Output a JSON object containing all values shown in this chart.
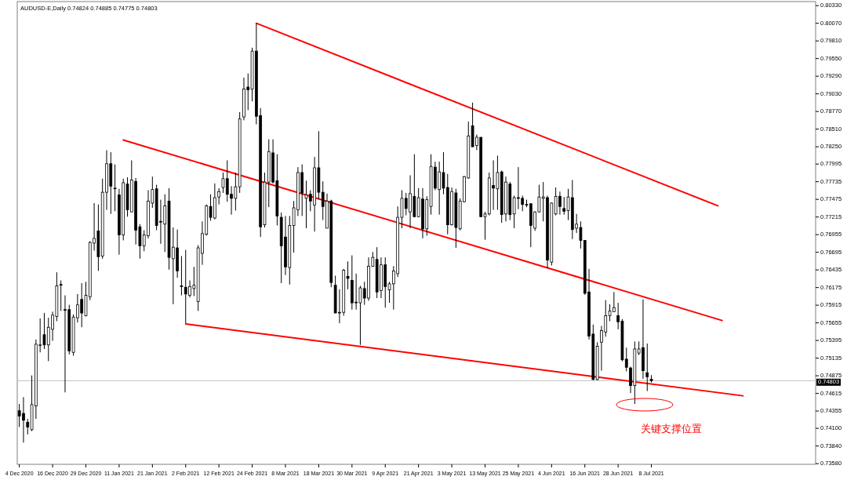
{
  "chart_data": {
    "type": "candlestick",
    "title": "AUDUSD-E,Daily  0.74824 0.74885 0.74775 0.74803",
    "color": "#000000",
    "categories": [
      "4 Dec 2020",
      null,
      null,
      null,
      null,
      null,
      null,
      null,
      "16 Dec 2020",
      null,
      null,
      null,
      null,
      null,
      null,
      null,
      "29 Dec 2020",
      null,
      null,
      null,
      null,
      null,
      null,
      null,
      "11 Jan 2021",
      null,
      null,
      null,
      null,
      null,
      null,
      null,
      "21 Jan 2021",
      null,
      null,
      null,
      null,
      null,
      null,
      null,
      "2 Feb 2021",
      null,
      null,
      null,
      null,
      null,
      null,
      null,
      "12 Feb 2021",
      null,
      null,
      null,
      null,
      null,
      null,
      null,
      "24 Feb 2021",
      null,
      null,
      null,
      null,
      null,
      null,
      null,
      "8 Mar 2021",
      null,
      null,
      null,
      null,
      null,
      null,
      null,
      "18 Mar 2021",
      null,
      null,
      null,
      null,
      null,
      null,
      null,
      "30 Mar 2021",
      null,
      null,
      null,
      null,
      null,
      null,
      null,
      "9 Apr 2021",
      null,
      null,
      null,
      null,
      null,
      null,
      null,
      "21 Apr 2021",
      null,
      null,
      null,
      null,
      null,
      null,
      null,
      "3 May 2021",
      null,
      null,
      null,
      null,
      null,
      null,
      null,
      "13 May 2021",
      null,
      null,
      null,
      null,
      null,
      null,
      null,
      "25 May 2021",
      null,
      null,
      null,
      null,
      null,
      null,
      null,
      "4 Jun 2021",
      null,
      null,
      null,
      null,
      null,
      null,
      null,
      "16 Jun 2021",
      null,
      null,
      null,
      null,
      null,
      null,
      null,
      "28 Jun 2021",
      null,
      null,
      null,
      null,
      null,
      null,
      null,
      "8 Jul 2021",
      null,
      null,
      null,
      null,
      null,
      null,
      null,
      null,
      null,
      null,
      null,
      null,
      null,
      null,
      null,
      null,
      null,
      null,
      null,
      null,
      null,
      null,
      null,
      null,
      null,
      null,
      null,
      null,
      null,
      null,
      null,
      null,
      null,
      null,
      null,
      null,
      null,
      null,
      null
    ],
    "ohlc": [
      [
        0.7436,
        0.7446,
        0.7412,
        0.7428
      ],
      [
        0.7432,
        0.7456,
        0.7389,
        0.7422
      ],
      [
        0.7419,
        0.7424,
        0.7401,
        0.7412
      ],
      [
        0.7408,
        0.7488,
        0.7406,
        0.7445
      ],
      [
        0.7443,
        0.7541,
        0.7424,
        0.7534
      ],
      [
        0.7533,
        0.7572,
        0.7522,
        0.7533
      ],
      [
        0.7548,
        0.758,
        0.7527,
        0.7533
      ],
      [
        0.7533,
        0.7573,
        0.7509,
        0.7559
      ],
      [
        0.7556,
        0.7582,
        0.7539,
        0.7577
      ],
      [
        0.7575,
        0.764,
        0.7568,
        0.762
      ],
      [
        0.7622,
        0.7628,
        0.7583,
        0.7621
      ],
      [
        0.7585,
        0.7606,
        0.7463,
        0.7584
      ],
      [
        0.7585,
        0.7592,
        0.7519,
        0.7524
      ],
      [
        0.7522,
        0.7578,
        0.7517,
        0.7574
      ],
      [
        0.7573,
        0.7608,
        0.7566,
        0.7592
      ],
      [
        0.76,
        0.7624,
        0.7559,
        0.758
      ],
      [
        0.7576,
        0.7626,
        0.7575,
        0.7606
      ],
      [
        0.7604,
        0.7686,
        0.7599,
        0.7684
      ],
      [
        0.7683,
        0.7742,
        0.7672,
        0.769
      ],
      [
        0.7701,
        0.774,
        0.7642,
        0.7663
      ],
      [
        0.7664,
        0.7778,
        0.766,
        0.7758
      ],
      [
        0.7758,
        0.782,
        0.7732,
        0.78
      ],
      [
        0.78,
        0.7817,
        0.7726,
        0.7767
      ],
      [
        0.7764,
        0.7799,
        0.773,
        0.7764
      ],
      [
        0.7754,
        0.7763,
        0.7666,
        0.7695
      ],
      [
        0.7695,
        0.7778,
        0.7687,
        0.7772
      ],
      [
        0.777,
        0.778,
        0.7722,
        0.7732
      ],
      [
        0.7729,
        0.7805,
        0.7729,
        0.7776
      ],
      [
        0.7774,
        0.7779,
        0.7681,
        0.7702
      ],
      [
        0.7707,
        0.7711,
        0.766,
        0.7679
      ],
      [
        0.7679,
        0.7702,
        0.7671,
        0.7695
      ],
      [
        0.7694,
        0.7761,
        0.769,
        0.7745
      ],
      [
        0.7742,
        0.7781,
        0.7735,
        0.7762
      ],
      [
        0.7763,
        0.7769,
        0.7702,
        0.7709
      ],
      [
        0.7715,
        0.7747,
        0.7682,
        0.7714
      ],
      [
        0.7711,
        0.7755,
        0.767,
        0.7738
      ],
      [
        0.7745,
        0.7764,
        0.7644,
        0.7662
      ],
      [
        0.766,
        0.7706,
        0.7593,
        0.7677
      ],
      [
        0.7676,
        0.7703,
        0.7632,
        0.7642
      ],
      [
        0.762,
        0.7664,
        0.7606,
        0.7619
      ],
      [
        0.7618,
        0.7673,
        0.7565,
        0.7608
      ],
      [
        0.7606,
        0.7628,
        0.7603,
        0.7619
      ],
      [
        0.7616,
        0.7648,
        0.7605,
        0.7621
      ],
      [
        0.7597,
        0.768,
        0.7583,
        0.7676
      ],
      [
        0.7668,
        0.7715,
        0.7651,
        0.7697
      ],
      [
        0.7696,
        0.774,
        0.7694,
        0.7738
      ],
      [
        0.7737,
        0.7755,
        0.7716,
        0.7721
      ],
      [
        0.772,
        0.7771,
        0.7718,
        0.775
      ],
      [
        0.7751,
        0.7764,
        0.774,
        0.7759
      ],
      [
        0.7765,
        0.7787,
        0.7757,
        0.7778
      ],
      [
        0.7778,
        0.7805,
        0.7744,
        0.7755
      ],
      [
        0.7755,
        0.7767,
        0.7725,
        0.7749
      ],
      [
        0.7749,
        0.7787,
        0.7731,
        0.7766
      ],
      [
        0.7766,
        0.7876,
        0.7757,
        0.7866
      ],
      [
        0.7869,
        0.7927,
        0.7864,
        0.791
      ],
      [
        0.7913,
        0.7933,
        0.7879,
        0.7909
      ],
      [
        0.791,
        0.7971,
        0.7892,
        0.7966
      ],
      [
        0.7966,
        0.8007,
        0.7858,
        0.787
      ],
      [
        0.7871,
        0.7882,
        0.7692,
        0.7707
      ],
      [
        0.771,
        0.7787,
        0.7706,
        0.7773
      ],
      [
        0.7773,
        0.7836,
        0.7736,
        0.7818
      ],
      [
        0.7816,
        0.7836,
        0.7771,
        0.7773
      ],
      [
        0.7775,
        0.7814,
        0.7709,
        0.7723
      ],
      [
        0.7721,
        0.7728,
        0.7624,
        0.7679
      ],
      [
        0.7692,
        0.7723,
        0.7636,
        0.7648
      ],
      [
        0.7647,
        0.7723,
        0.7622,
        0.7709
      ],
      [
        0.7709,
        0.7745,
        0.7669,
        0.7735
      ],
      [
        0.7732,
        0.7795,
        0.7723,
        0.7787
      ],
      [
        0.7787,
        0.7799,
        0.7723,
        0.7757
      ],
      [
        0.7749,
        0.7775,
        0.7705,
        0.7754
      ],
      [
        0.7755,
        0.7761,
        0.773,
        0.7745
      ],
      [
        0.7739,
        0.781,
        0.77,
        0.7794
      ],
      [
        0.7794,
        0.7848,
        0.7748,
        0.7758
      ],
      [
        0.7758,
        0.7774,
        0.7717,
        0.7737
      ],
      [
        0.7705,
        0.7756,
        0.7705,
        0.7745
      ],
      [
        0.7745,
        0.7747,
        0.7618,
        0.7625
      ],
      [
        0.7621,
        0.7635,
        0.758,
        0.758
      ],
      [
        0.758,
        0.7615,
        0.7565,
        0.7581
      ],
      [
        0.7581,
        0.7645,
        0.7576,
        0.7643
      ],
      [
        0.7634,
        0.7656,
        0.7615,
        0.7631
      ],
      [
        0.7628,
        0.7665,
        0.7585,
        0.7595
      ],
      [
        0.7596,
        0.7638,
        0.7585,
        0.7595
      ],
      [
        0.7595,
        0.762,
        0.7533,
        0.7617
      ],
      [
        0.7616,
        0.7626,
        0.7592,
        0.7602
      ],
      [
        0.7602,
        0.7662,
        0.7598,
        0.7649
      ],
      [
        0.7649,
        0.767,
        0.7648,
        0.7662
      ],
      [
        0.7659,
        0.7677,
        0.7602,
        0.7611
      ],
      [
        0.7613,
        0.7662,
        0.7602,
        0.7651
      ],
      [
        0.7651,
        0.7662,
        0.7588,
        0.7619
      ],
      [
        0.7614,
        0.7626,
        0.7595,
        0.7623
      ],
      [
        0.7623,
        0.7649,
        0.7585,
        0.7642
      ],
      [
        0.7638,
        0.7737,
        0.7633,
        0.7721
      ],
      [
        0.7721,
        0.7761,
        0.7705,
        0.7749
      ],
      [
        0.7749,
        0.7757,
        0.7724,
        0.7734
      ],
      [
        0.7729,
        0.7783,
        0.7705,
        0.7756
      ],
      [
        0.7752,
        0.7814,
        0.7721,
        0.7722
      ],
      [
        0.7722,
        0.7764,
        0.7721,
        0.775
      ],
      [
        0.7748,
        0.7764,
        0.769,
        0.7704
      ],
      [
        0.7704,
        0.7752,
        0.7694,
        0.7747
      ],
      [
        0.7737,
        0.7814,
        0.7725,
        0.7796
      ],
      [
        0.7795,
        0.7803,
        0.7761,
        0.7764
      ],
      [
        0.7762,
        0.7803,
        0.7725,
        0.7788
      ],
      [
        0.7787,
        0.7817,
        0.7755,
        0.7764
      ],
      [
        0.7765,
        0.7785,
        0.7696,
        0.771
      ],
      [
        0.771,
        0.7765,
        0.7709,
        0.7759
      ],
      [
        0.7757,
        0.7763,
        0.7676,
        0.7706
      ],
      [
        0.7704,
        0.7749,
        0.7702,
        0.7745
      ],
      [
        0.7744,
        0.7782,
        0.7743,
        0.7781
      ],
      [
        0.7779,
        0.7862,
        0.7778,
        0.7841
      ],
      [
        0.7856,
        0.789,
        0.7825,
        0.7825
      ],
      [
        0.7827,
        0.7843,
        0.782,
        0.7839
      ],
      [
        0.7839,
        0.7839,
        0.7721,
        0.7722
      ],
      [
        0.7722,
        0.7729,
        0.7688,
        0.7726
      ],
      [
        0.7726,
        0.7787,
        0.7724,
        0.7779
      ],
      [
        0.7768,
        0.7805,
        0.7732,
        0.7764
      ],
      [
        0.7763,
        0.7812,
        0.7732,
        0.7787
      ],
      [
        0.7788,
        0.779,
        0.7713,
        0.7725
      ],
      [
        0.7726,
        0.7781,
        0.7715,
        0.7773
      ],
      [
        0.777,
        0.7773,
        0.7717,
        0.7725
      ],
      [
        0.7726,
        0.7753,
        0.7705,
        0.775
      ],
      [
        0.775,
        0.7795,
        0.7733,
        0.7749
      ],
      [
        0.7749,
        0.7753,
        0.773,
        0.774
      ],
      [
        0.774,
        0.7747,
        0.7736,
        0.7739
      ],
      [
        0.7741,
        0.7742,
        0.7677,
        0.7709
      ],
      [
        0.7705,
        0.773,
        0.7701,
        0.7729
      ],
      [
        0.7729,
        0.7769,
        0.7728,
        0.7751
      ],
      [
        0.7749,
        0.7773,
        0.7715,
        0.7751
      ],
      [
        0.775,
        0.7753,
        0.7646,
        0.7658
      ],
      [
        0.7655,
        0.7743,
        0.765,
        0.7742
      ],
      [
        0.7726,
        0.7765,
        0.7724,
        0.7752
      ],
      [
        0.7752,
        0.7759,
        0.7725,
        0.7737
      ],
      [
        0.7734,
        0.7751,
        0.7725,
        0.773
      ],
      [
        0.7731,
        0.7763,
        0.7717,
        0.7751
      ],
      [
        0.775,
        0.7776,
        0.7689,
        0.7703
      ],
      [
        0.7705,
        0.7726,
        0.7698,
        0.7711
      ],
      [
        0.7706,
        0.7715,
        0.7675,
        0.7687
      ],
      [
        0.7687,
        0.7687,
        0.7607,
        0.7609
      ],
      [
        0.7611,
        0.7645,
        0.7541,
        0.7546
      ],
      [
        0.7549,
        0.7563,
        0.7481,
        0.7482
      ],
      [
        0.7482,
        0.7537,
        0.7481,
        0.7531
      ],
      [
        0.7537,
        0.7561,
        0.7495,
        0.7554
      ],
      [
        0.7552,
        0.7599,
        0.7545,
        0.7576
      ],
      [
        0.7576,
        0.7593,
        0.7568,
        0.7583
      ],
      [
        0.7582,
        0.7611,
        0.7582,
        0.7588
      ],
      [
        0.7576,
        0.7595,
        0.7556,
        0.7567
      ],
      [
        0.7568,
        0.7571,
        0.7509,
        0.7511
      ],
      [
        0.7512,
        0.7529,
        0.7494,
        0.75
      ],
      [
        0.7499,
        0.7501,
        0.7462,
        0.7473
      ],
      [
        0.7473,
        0.7538,
        0.7446,
        0.7527
      ],
      [
        0.7521,
        0.7538,
        0.7518,
        0.7527
      ],
      [
        0.7529,
        0.76,
        0.7483,
        0.7495
      ],
      [
        0.7492,
        0.7535,
        0.7465,
        0.7486
      ],
      [
        0.74824,
        0.74885,
        0.74775,
        0.74803
      ],
      null,
      null,
      null,
      null,
      null,
      null,
      null,
      null,
      null,
      null,
      null,
      null,
      null,
      null,
      null,
      null,
      null,
      null,
      null,
      null,
      null,
      null,
      null,
      null,
      null,
      null,
      null,
      null,
      null,
      null,
      null,
      null,
      null,
      null,
      null,
      null,
      null,
      null,
      null
    ],
    "series": [
      {
        "type": "line",
        "color": "#ff0000",
        "values": [
          null,
          null,
          null,
          null,
          null,
          null,
          null,
          null,
          null,
          null,
          null,
          null,
          null,
          null,
          null,
          null,
          null,
          null,
          null,
          null,
          null,
          null,
          null,
          null,
          null,
          null,
          null,
          null,
          null,
          null,
          null,
          null,
          null,
          null,
          null,
          null,
          null,
          null,
          null,
          null,
          null,
          null,
          null,
          null,
          null,
          null,
          null,
          null,
          null,
          null,
          null,
          null,
          null,
          null,
          null,
          null,
          null,
          0.8007,
          null,
          null,
          null,
          null,
          null,
          null,
          null,
          null,
          null,
          null,
          null,
          null,
          null,
          null,
          null,
          null,
          null,
          null,
          null,
          null,
          null,
          null,
          null,
          null,
          null,
          null,
          null,
          null,
          null,
          null,
          null,
          null,
          null,
          null,
          null,
          null,
          null,
          null,
          null,
          null,
          null,
          null,
          null,
          null,
          null,
          null,
          null,
          null,
          null,
          null,
          null,
          null,
          null,
          null,
          null,
          null,
          null,
          null,
          null,
          null,
          null,
          null,
          null,
          null,
          null,
          null,
          null,
          null,
          null,
          null,
          null,
          null,
          null,
          null,
          null,
          null,
          null,
          null,
          null,
          null,
          null,
          null,
          null,
          null,
          null,
          null,
          null,
          null,
          null,
          null,
          null,
          null,
          null,
          null,
          null,
          null,
          null,
          null,
          null,
          null,
          null,
          null,
          null,
          null,
          null,
          null,
          null,
          null,
          null,
          null,
          0.7738,
          null,
          null,
          null,
          null,
          null,
          null,
          null,
          null,
          null,
          null,
          null,
          null,
          null,
          null,
          null,
          null,
          null,
          null,
          null,
          null,
          null,
          null,
          null
        ]
      },
      {
        "type": "line",
        "color": "#ff0000",
        "values": [
          null,
          null,
          null,
          null,
          null,
          null,
          null,
          null,
          null,
          null,
          null,
          null,
          null,
          null,
          null,
          null,
          null,
          null,
          null,
          null,
          null,
          null,
          null,
          null,
          null,
          0.7835,
          null,
          null,
          null,
          null,
          null,
          null,
          null,
          null,
          null,
          null,
          null,
          null,
          null,
          null,
          null,
          null,
          null,
          null,
          null,
          null,
          null,
          null,
          null,
          null,
          null,
          null,
          null,
          null,
          null,
          null,
          null,
          null,
          null,
          null,
          null,
          null,
          null,
          null,
          null,
          null,
          null,
          null,
          null,
          null,
          null,
          null,
          null,
          null,
          null,
          null,
          null,
          null,
          null,
          null,
          null,
          null,
          null,
          null,
          null,
          null,
          null,
          null,
          null,
          null,
          null,
          null,
          null,
          null,
          null,
          null,
          null,
          null,
          null,
          null,
          null,
          null,
          null,
          null,
          null,
          null,
          null,
          null,
          null,
          null,
          null,
          null,
          null,
          null,
          null,
          null,
          null,
          null,
          null,
          null,
          null,
          null,
          null,
          null,
          null,
          null,
          null,
          null,
          null,
          null,
          null,
          null,
          null,
          null,
          null,
          null,
          null,
          null,
          null,
          null,
          null,
          null,
          null,
          null,
          null,
          null,
          null,
          null,
          null,
          null,
          null,
          null,
          null,
          null,
          null,
          null,
          null,
          null,
          null,
          null,
          null,
          null,
          null,
          null,
          null,
          null,
          null,
          null,
          null,
          0.7569,
          null,
          null,
          null,
          null,
          null,
          null,
          null,
          null,
          null,
          null,
          null,
          null,
          null,
          null,
          null,
          null,
          null,
          null,
          null,
          null,
          null,
          null
        ]
      },
      {
        "type": "line",
        "color": "#ff0000",
        "values": [
          null,
          null,
          null,
          null,
          null,
          null,
          null,
          null,
          null,
          null,
          null,
          null,
          null,
          null,
          null,
          null,
          null,
          null,
          null,
          null,
          null,
          null,
          null,
          null,
          null,
          null,
          null,
          null,
          null,
          null,
          null,
          null,
          null,
          null,
          null,
          null,
          null,
          null,
          null,
          null,
          0.7564,
          null,
          null,
          null,
          null,
          null,
          null,
          null,
          null,
          null,
          null,
          null,
          null,
          null,
          null,
          null,
          null,
          null,
          null,
          null,
          null,
          null,
          null,
          null,
          null,
          null,
          null,
          null,
          null,
          null,
          null,
          null,
          null,
          null,
          null,
          null,
          null,
          null,
          null,
          null,
          null,
          null,
          null,
          null,
          null,
          null,
          null,
          null,
          null,
          null,
          null,
          null,
          null,
          null,
          null,
          null,
          null,
          null,
          null,
          null,
          null,
          null,
          null,
          null,
          null,
          null,
          null,
          null,
          null,
          null,
          null,
          null,
          null,
          null,
          null,
          null,
          null,
          null,
          null,
          null,
          null,
          null,
          null,
          null,
          null,
          null,
          null,
          null,
          null,
          null,
          null,
          null,
          null,
          null,
          null,
          null,
          null,
          null,
          null,
          null,
          null,
          null,
          null,
          null,
          null,
          null,
          null,
          null,
          null,
          null,
          null,
          null,
          null,
          null,
          null,
          null,
          null,
          null,
          null,
          null,
          null,
          null,
          null,
          null,
          null,
          null,
          null,
          null,
          null,
          null,
          null,
          null,
          null,
          null,
          0.7458,
          null,
          null,
          null,
          null,
          null,
          null,
          null,
          null,
          null,
          null,
          null,
          null,
          null,
          null,
          null,
          null,
          null
        ]
      }
    ],
    "ylim": [
      0.7357,
      0.8039
    ],
    "yticks": [
      {
        "value": 0.8033,
        "label": "0.80330"
      },
      {
        "value": 0.8007,
        "label": "0.80070"
      },
      {
        "value": 0.7981,
        "label": "0.79810"
      },
      {
        "value": 0.7955,
        "label": "0.79550"
      },
      {
        "value": 0.7929,
        "label": "0.79290"
      },
      {
        "value": 0.7903,
        "label": "0.79030"
      },
      {
        "value": 0.7877,
        "label": "0.78770"
      },
      {
        "value": 0.7851,
        "label": "0.78510"
      },
      {
        "value": 0.7825,
        "label": "0.78250"
      },
      {
        "value": 0.77995,
        "label": "0.77995"
      },
      {
        "value": 0.77735,
        "label": "0.77735"
      },
      {
        "value": 0.77475,
        "label": "0.77475"
      },
      {
        "value": 0.77215,
        "label": "0.77215"
      },
      {
        "value": 0.76955,
        "label": "0.76955"
      },
      {
        "value": 0.76695,
        "label": "0.76695"
      },
      {
        "value": 0.76435,
        "label": "0.76435"
      },
      {
        "value": 0.76175,
        "label": "0.76175"
      },
      {
        "value": 0.75915,
        "label": "0.75915"
      },
      {
        "value": 0.75655,
        "label": "0.75655"
      },
      {
        "value": 0.75395,
        "label": "0.75395"
      },
      {
        "value": 0.75135,
        "label": "0.75135"
      },
      {
        "value": 0.74875,
        "label": "0.74875"
      },
      {
        "value": 0.74615,
        "label": "0.74615"
      },
      {
        "value": 0.74355,
        "label": "0.74355"
      },
      {
        "value": 0.741,
        "label": "0.74100"
      },
      {
        "value": 0.7384,
        "label": "0.73840"
      },
      {
        "value": 0.7358,
        "label": "0.73580"
      }
    ],
    "ref_lines": [
      {
        "axis": "y",
        "value": 0.74803,
        "label": "0.74803",
        "color": "#c0c0c0"
      }
    ],
    "annotations": [
      "关键支撑位置"
    ]
  }
}
